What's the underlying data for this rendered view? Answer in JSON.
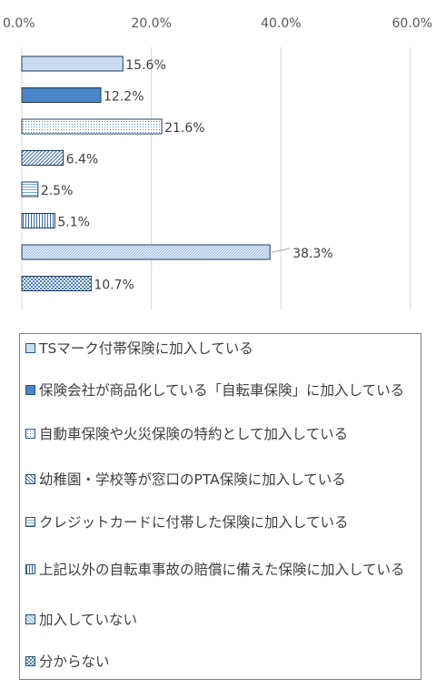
{
  "chart_data": {
    "type": "bar",
    "orientation": "horizontal",
    "xlim": [
      0,
      60
    ],
    "ticks": [
      "0.0%",
      "20.0%",
      "40.0%",
      "60.0%"
    ],
    "tick_values": [
      0,
      20,
      40,
      60
    ],
    "grid": true,
    "legend_position": "bottom",
    "categories": [
      "TSマーク付帯保険に加入している",
      "保険会社が商品化している「自転車保険」に加入している",
      "自動車保険や火災保険の特約として加入している",
      "幼稚園・学校等が窓口のPTA保険に加入している",
      "クレジットカードに付帯した保険に加入している",
      "上記以外の自転車事故の賠償に備えた保険に加入している",
      "加入していない",
      "分からない"
    ],
    "values": [
      15.6,
      12.2,
      21.6,
      6.4,
      2.5,
      5.1,
      38.3,
      10.7
    ],
    "data_labels": [
      "15.6%",
      "12.2%",
      "21.6%",
      "6.4%",
      "2.5%",
      "5.1%",
      "38.3%",
      "10.7%"
    ],
    "patterns": [
      "light",
      "solid",
      "dots",
      "diagonal",
      "hlines",
      "vlines",
      "fine",
      "checker"
    ],
    "colors": {
      "edge": "#1f3b5c",
      "light_fill": "#c9dcf2",
      "solid_fill": "#4a86c8",
      "pattern_ink": "#5b8fc9",
      "grid": "#d9d9d9"
    }
  }
}
